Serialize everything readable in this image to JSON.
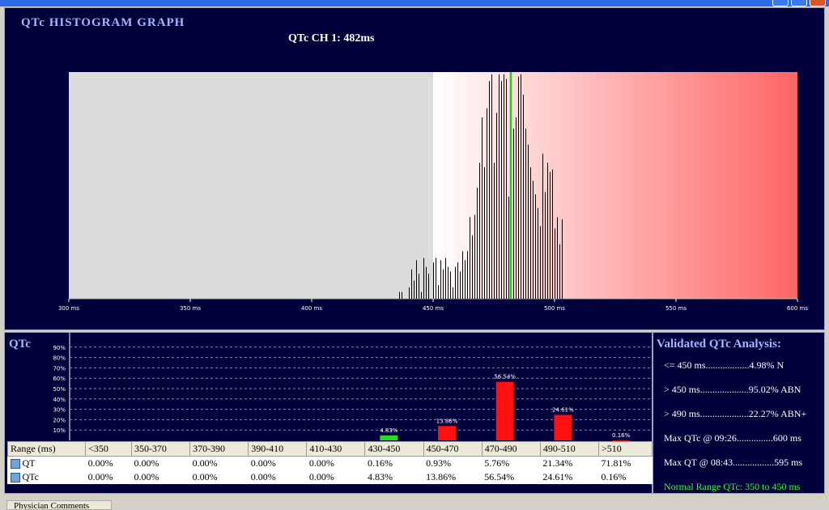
{
  "histogram": {
    "title": "QTc  HISTOGRAM  GRAPH",
    "subtitle": "QTc CH 1: 482ms",
    "x_ticks": [
      "300 ms",
      "350 ms",
      "400 ms",
      "450 ms",
      "500 ms",
      "550 ms",
      "600 ms"
    ],
    "marker_value_ms": 482,
    "normal_upper_ms": 450,
    "colors": {
      "normal_bg": "#dcdcdc",
      "abnormal_start": "#ffffff",
      "abnormal_end": "#ff6464",
      "marker": "#22cc22",
      "bars": "#000000"
    }
  },
  "chart_data": [
    {
      "type": "bar",
      "title": "QTc  HISTOGRAM  GRAPH",
      "subtitle": "QTc CH 1: 482ms",
      "xlim": [
        300,
        600
      ],
      "x": [
        436,
        437,
        440,
        441,
        442,
        443,
        444,
        445,
        446,
        447,
        448,
        450,
        451,
        452,
        453,
        454,
        455,
        456,
        457,
        458,
        459,
        460,
        461,
        462,
        463,
        464,
        465,
        466,
        467,
        468,
        469,
        470,
        471,
        472,
        473,
        474,
        475,
        476,
        477,
        478,
        479,
        480,
        481,
        482,
        483,
        484,
        485,
        486,
        487,
        488,
        489,
        490,
        491,
        492,
        493,
        494,
        495,
        496,
        497,
        498,
        499,
        500,
        501,
        502,
        503,
        600
      ],
      "values": [
        3,
        3,
        5,
        13,
        8,
        17,
        11,
        3,
        18,
        14,
        11,
        16,
        18,
        6,
        17,
        13,
        18,
        14,
        12,
        5,
        14,
        16,
        12,
        21,
        17,
        21,
        36,
        28,
        37,
        49,
        60,
        80,
        58,
        84,
        96,
        99,
        60,
        82,
        99,
        96,
        99,
        97,
        45,
        99,
        75,
        80,
        98,
        99,
        90,
        75,
        68,
        58,
        52,
        46,
        40,
        32,
        64,
        47,
        60,
        56,
        57,
        31,
        36,
        24,
        35,
        3
      ]
    },
    {
      "type": "bar",
      "title": "QTc",
      "categories": [
        "<350",
        "350-370",
        "370-390",
        "390-410",
        "410-430",
        "430-450",
        "450-470",
        "470-490",
        "490-510",
        ">510"
      ],
      "values": [
        0,
        0,
        0,
        0,
        0,
        4.83,
        13.86,
        56.54,
        24.61,
        0.16
      ],
      "data_labels": [
        "",
        "",
        "",
        "",
        "",
        "4.83%",
        "13.86%",
        "56.54%",
        "24.61%",
        "0.16%"
      ],
      "y_ticks": [
        "10%",
        "20%",
        "30%",
        "40%",
        "50%",
        "60%",
        "70%",
        "80%",
        "90%"
      ],
      "colors": {
        "normal": "#22dd22",
        "abnormal": "#ff1010"
      }
    }
  ],
  "qtc_panel": {
    "label": "QTc"
  },
  "range_table": {
    "headers": [
      "Range (ms)",
      "<350",
      "350-370",
      "370-390",
      "390-410",
      "410-430",
      "430-450",
      "450-470",
      "470-490",
      "490-510",
      ">510"
    ],
    "rows": [
      {
        "label": "QT",
        "values": [
          "0.00%",
          "0.00%",
          "0.00%",
          "0.00%",
          "0.00%",
          "0.16%",
          "0.93%",
          "5.76%",
          "21.34%",
          "71.81%"
        ]
      },
      {
        "label": "QTc",
        "values": [
          "0.00%",
          "0.00%",
          "0.00%",
          "0.00%",
          "0.00%",
          "4.83%",
          "13.86%",
          "56.54%",
          "24.61%",
          "0.16%"
        ]
      }
    ]
  },
  "validated": {
    "title": "Validated QTc Analysis:",
    "lines": [
      "<= 450 ms..................4.98%  N",
      ">  450 ms....................95.02%  ABN",
      ">  490 ms....................22.27%  ABN+",
      "Max QTc @ 09:26...............600 ms",
      "Max QT @ 08:43.................595 ms"
    ],
    "normal_range": "Normal Range QTc: 350 to 450 ms"
  },
  "footer": {
    "physician_comments": "Physician Comments"
  }
}
